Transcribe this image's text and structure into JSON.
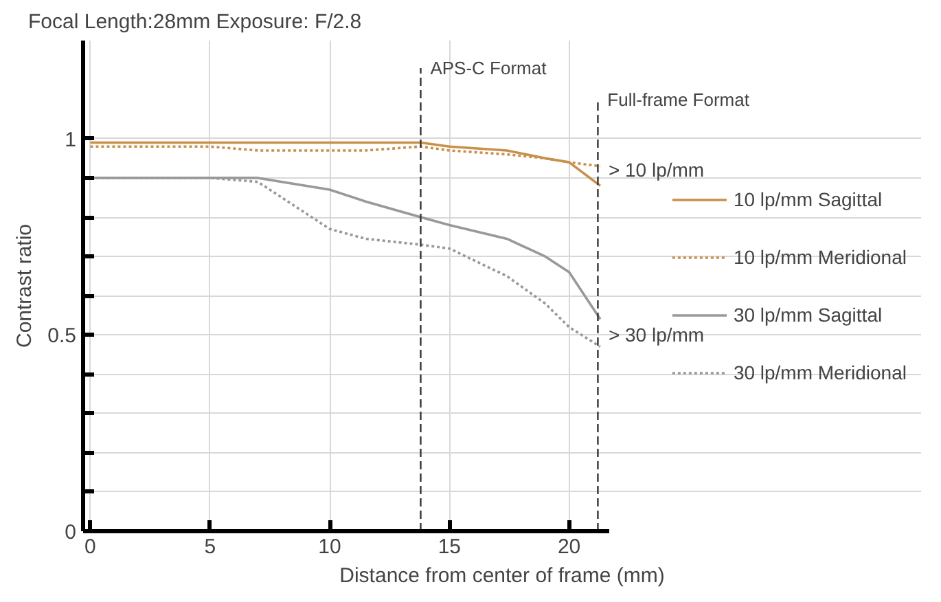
{
  "chart_data": {
    "type": "line",
    "title": "Focal Length:28mm",
    "subtitle": "Exposure: F/2.8",
    "xlabel": "Distance from center of frame (mm)",
    "ylabel": "Contrast ratio",
    "x": [
      0,
      5,
      7,
      10,
      11.5,
      13.8,
      15,
      17.4,
      19,
      20,
      21.3
    ],
    "series": [
      {
        "name": "10 lp/mm Sagittal",
        "color": "#c8904a",
        "line_style": "solid",
        "values": [
          0.99,
          0.99,
          0.99,
          0.99,
          0.99,
          0.99,
          0.98,
          0.97,
          0.95,
          0.94,
          0.88
        ]
      },
      {
        "name": "10 lp/mm Meridional",
        "color": "#c8904a",
        "line_style": "dotted",
        "values": [
          0.98,
          0.98,
          0.97,
          0.97,
          0.97,
          0.98,
          0.97,
          0.96,
          0.95,
          0.94,
          0.93
        ]
      },
      {
        "name": "30 lp/mm Sagittal",
        "color": "#999999",
        "line_style": "solid",
        "values": [
          0.9,
          0.9,
          0.9,
          0.87,
          0.84,
          0.8,
          0.78,
          0.745,
          0.7,
          0.66,
          0.54
        ]
      },
      {
        "name": "30 lp/mm Meridional",
        "color": "#999999",
        "line_style": "dotted",
        "values": [
          0.9,
          0.9,
          0.89,
          0.77,
          0.745,
          0.73,
          0.72,
          0.65,
          0.58,
          0.52,
          0.47
        ]
      }
    ],
    "xlim": [
      0,
      21.7
    ],
    "ylim": [
      0,
      1.25
    ],
    "xticks": [
      0,
      5,
      10,
      15,
      20
    ],
    "yticks": [
      0,
      {
        "value": 0.1,
        "label": null
      },
      {
        "value": 0.2,
        "label": null
      },
      {
        "value": 0.3,
        "label": null
      },
      {
        "value": 0.4,
        "label": null
      },
      0.5,
      {
        "value": 0.6,
        "label": null
      },
      {
        "value": 0.7,
        "label": null
      },
      {
        "value": 0.8,
        "label": null
      },
      {
        "value": 0.9,
        "label": null
      },
      1
    ],
    "grid": true,
    "legend": "right",
    "marker": "none",
    "ref_lines": [
      {
        "axis": "x",
        "value": 13.8,
        "label": "APS-C Format",
        "color": "#333333",
        "line_style": "dashed"
      },
      {
        "axis": "x",
        "value": 21.2,
        "label": "Full-frame Format",
        "color": "#333333",
        "line_style": "dashed"
      }
    ],
    "annotations": [
      {
        "text": "> 10 lp/mm",
        "x": 21.3,
        "y": 0.92
      },
      {
        "text": "> 30 lp/mm",
        "x": 21.3,
        "y": 0.5
      }
    ]
  }
}
